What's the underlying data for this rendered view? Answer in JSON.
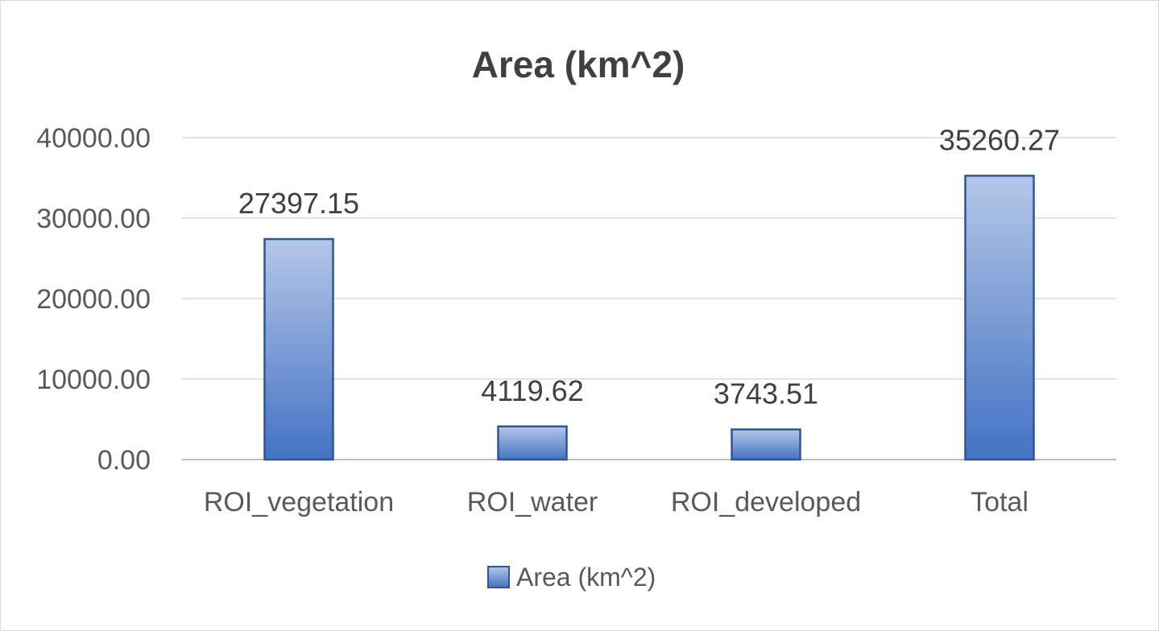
{
  "chart_data": {
    "type": "bar",
    "title": "Area (km^2)",
    "xlabel": "",
    "ylabel": "",
    "categories": [
      "ROI_vegetation",
      "ROI_water",
      "ROI_developed",
      "Total"
    ],
    "series": [
      {
        "name": "Area (km^2)",
        "values": [
          27397.15,
          4119.62,
          3743.51,
          35260.27
        ],
        "labels": [
          "27397.15",
          "4119.62",
          "3743.51",
          "35260.27"
        ]
      }
    ],
    "ylim": [
      0,
      40000
    ],
    "yticks": [
      0,
      10000,
      20000,
      30000,
      40000
    ],
    "ytick_labels": [
      "0.00",
      "10000.00",
      "20000.00",
      "30000.00",
      "40000.00"
    ],
    "grid": true,
    "legend": "bottom",
    "colors": {
      "bar_top": "#b4c7e7",
      "bar_bottom": "#4472c4",
      "bar_border": "#2f5597"
    }
  }
}
